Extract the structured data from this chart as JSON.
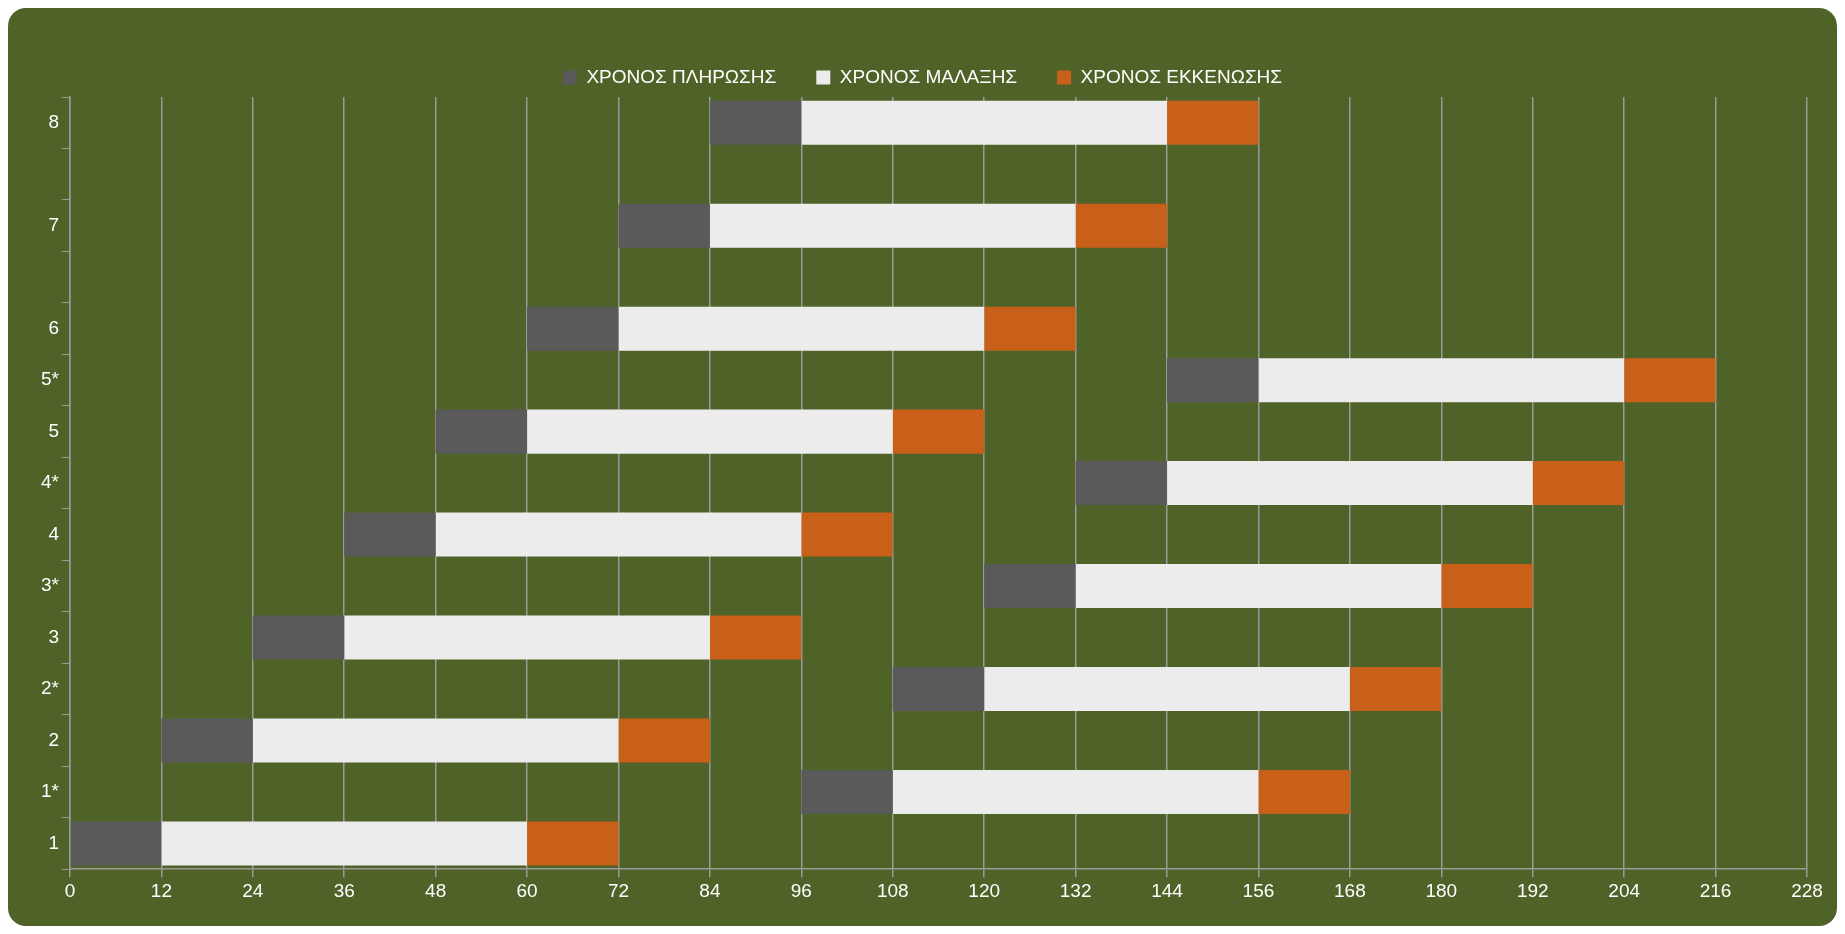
{
  "chart_data": {
    "type": "bar",
    "orientation": "horizontal",
    "categories": [
      "8",
      null,
      "7",
      null,
      "6",
      "5*",
      "5",
      "4*",
      "4",
      "3*",
      "3",
      "2*",
      "2",
      "1*",
      "1"
    ],
    "series": [
      {
        "name": "ΧΡΟΝΟΣ ΠΛΗΡΩΣΗΣ",
        "color": "#5a5a5a",
        "base": [
          84,
          null,
          72,
          null,
          60,
          144,
          48,
          132,
          36,
          120,
          24,
          108,
          12,
          96,
          0
        ],
        "values": [
          12,
          null,
          12,
          null,
          12,
          12,
          12,
          12,
          12,
          12,
          12,
          12,
          12,
          12,
          12
        ]
      },
      {
        "name": "ΧΡΟΝΟΣ ΜΑΛΑΞΗΣ",
        "color": "#ececec",
        "base": [
          96,
          null,
          84,
          null,
          72,
          156,
          60,
          144,
          48,
          132,
          36,
          120,
          24,
          108,
          12
        ],
        "values": [
          48,
          null,
          48,
          null,
          48,
          48,
          48,
          48,
          48,
          48,
          48,
          48,
          48,
          48,
          48
        ]
      },
      {
        "name": "ΧΡΟΝΟΣ ΕΚΚΕΝΩΣΗΣ",
        "color": "#c8601a",
        "base": [
          144,
          null,
          132,
          null,
          120,
          204,
          108,
          192,
          96,
          180,
          84,
          168,
          72,
          156,
          60
        ],
        "values": [
          12,
          null,
          12,
          null,
          12,
          12,
          12,
          12,
          12,
          12,
          12,
          12,
          12,
          12,
          12
        ]
      }
    ],
    "xlim": [
      0,
      228
    ],
    "xticks": [
      0,
      12,
      24,
      36,
      48,
      60,
      72,
      84,
      96,
      108,
      120,
      132,
      144,
      156,
      168,
      180,
      192,
      204,
      216,
      228
    ],
    "grid": "x",
    "legend": "top"
  }
}
